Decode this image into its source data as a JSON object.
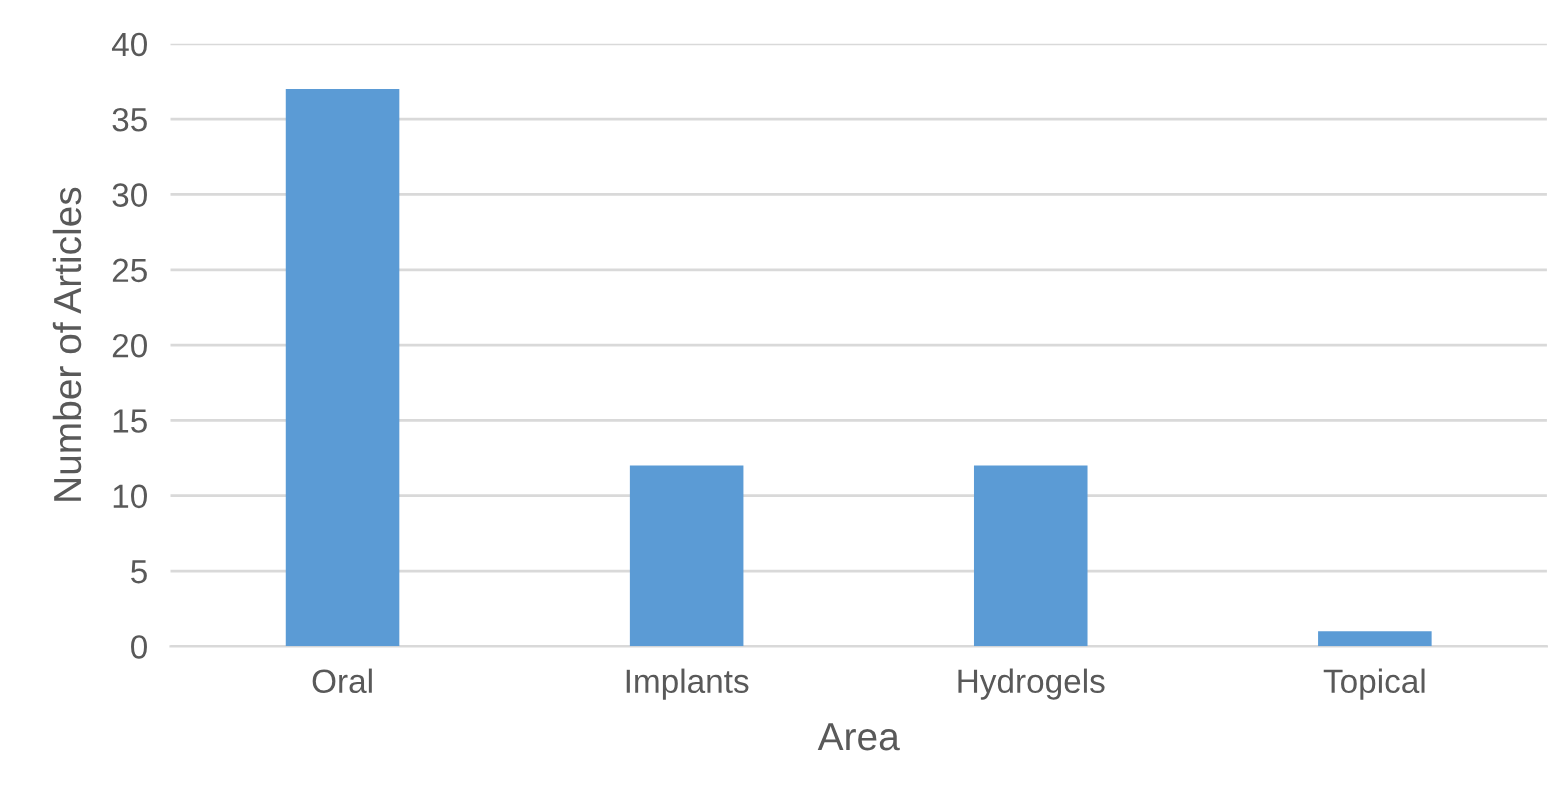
{
  "chart_data": {
    "type": "bar",
    "xlabel": "Area",
    "ylabel": "Number of Articles",
    "categories": [
      "Oral",
      "Implants",
      "Hydrogels",
      "Topical"
    ],
    "values": [
      37,
      12,
      12,
      1
    ],
    "color": "#5b9bd5",
    "ylim": [
      0,
      40
    ],
    "yticks": [
      0,
      5,
      10,
      15,
      20,
      25,
      30,
      35,
      40
    ],
    "grid": "y",
    "legend": false
  }
}
